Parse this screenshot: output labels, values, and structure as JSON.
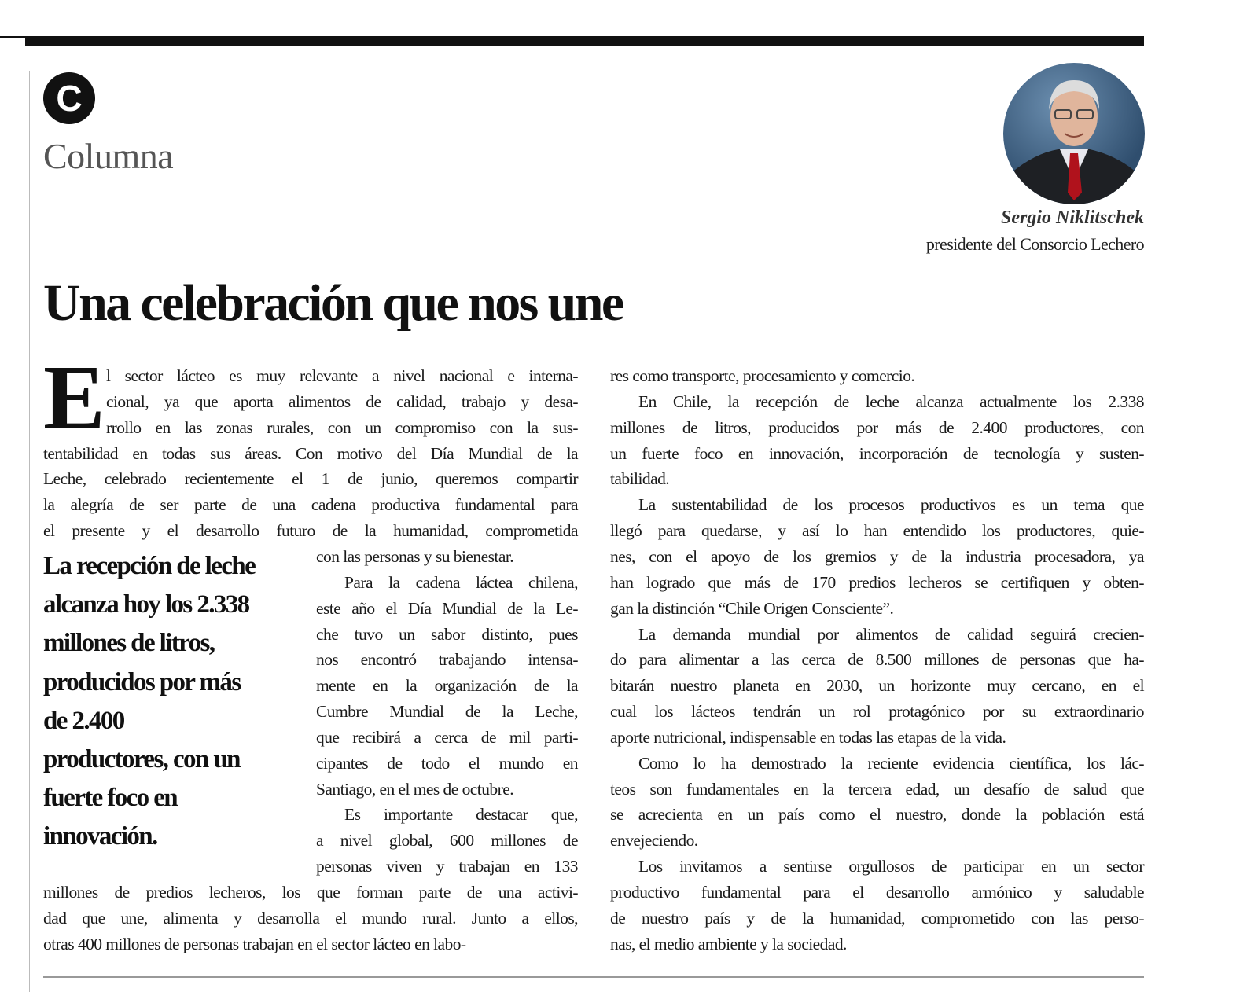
{
  "section": {
    "badge": "C",
    "label": "Columna"
  },
  "author": {
    "name": "Sergio Niklitschek",
    "role": "presidente del Consorcio Lechero",
    "photo_icon": "author-portrait"
  },
  "headline": "Una celebración que nos une",
  "dropcap": "E",
  "left_column_lines": [
    "l sector lácteo es muy relevante a nivel nacional e interna-",
    "cional, ya que aporta alimentos de calidad, trabajo y desa-",
    "rrollo en las zonas rurales, con un compromiso con la sus-",
    "tentabilidad en todas sus áreas. Con motivo del Día Mundial de la",
    "Leche, celebrado recientemente el 1 de junio, queremos compartir",
    "la alegría de ser parte de una cadena productiva fundamental para",
    "el presente y el desarrollo futuro de la humanidad, comprometida",
    "con las personas y su bienestar.",
    "Para la cadena láctea chilena,",
    "este año el Día Mundial de la Le-",
    "che tuvo un sabor distinto, pues",
    "nos encontró trabajando intensa-",
    "mente en la organización de la",
    "Cumbre Mundial de la Leche,",
    "que recibirá a cerca de mil parti-",
    "cipantes de todo el mundo en",
    "Santiago, en el mes de octubre.",
    "Es importante destacar que,",
    "a nivel global, 600 millones de",
    "personas viven y trabajan en 133",
    "millones de predios lecheros, los que forman parte de una activi-",
    "dad que une, alimenta y desarrolla el mundo rural. Junto a ellos,",
    "otras 400 millones de personas trabajan en el sector lácteo en labo-"
  ],
  "pull_quote_lines": [
    "La recepción de leche",
    "alcanza hoy los 2.338",
    "millones de litros,",
    "producidos por más",
    "de 2.400",
    "productores, con un",
    "fuerte foco en",
    "innovación."
  ],
  "right_column_lines": [
    "res como transporte, procesamiento y comercio.",
    "En Chile, la recepción de leche alcanza actualmente los 2.338",
    "millones de litros, producidos por más de 2.400 productores, con",
    "un fuerte foco en innovación, incorporación de tecnología y susten-",
    "tabilidad.",
    "La sustentabilidad de los procesos productivos es un tema que",
    "llegó para quedarse, y así lo han entendido los productores, quie-",
    "nes, con el apoyo de los gremios y de la industria procesadora, ya",
    "han logrado que más de 170 predios lecheros se certifiquen y obten-",
    "gan la distinción “Chile Origen Consciente”.",
    "La demanda mundial por alimentos de calidad seguirá crecien-",
    "do para alimentar a las cerca de 8.500 millones de personas que ha-",
    "bitarán nuestro planeta en 2030, un horizonte muy cercano, en el",
    "cual los lácteos tendrán un rol protagónico por su extraordinario",
    "aporte nutricional, indispensable en todas las etapas de la vida.",
    "Como lo ha demostrado la reciente evidencia científica, los lác-",
    "teos son fundamentales en la tercera edad, un desafío de salud que",
    "se acrecienta en un país como el nuestro, donde la población está",
    "envejeciendo.",
    "Los invitamos a sentirse orgullosos de participar en un sector",
    "productivo fundamental para el desarrollo armónico y saludable",
    "de nuestro país y de la humanidad, comprometido con las perso-",
    "nas, el medio ambiente y la sociedad."
  ]
}
